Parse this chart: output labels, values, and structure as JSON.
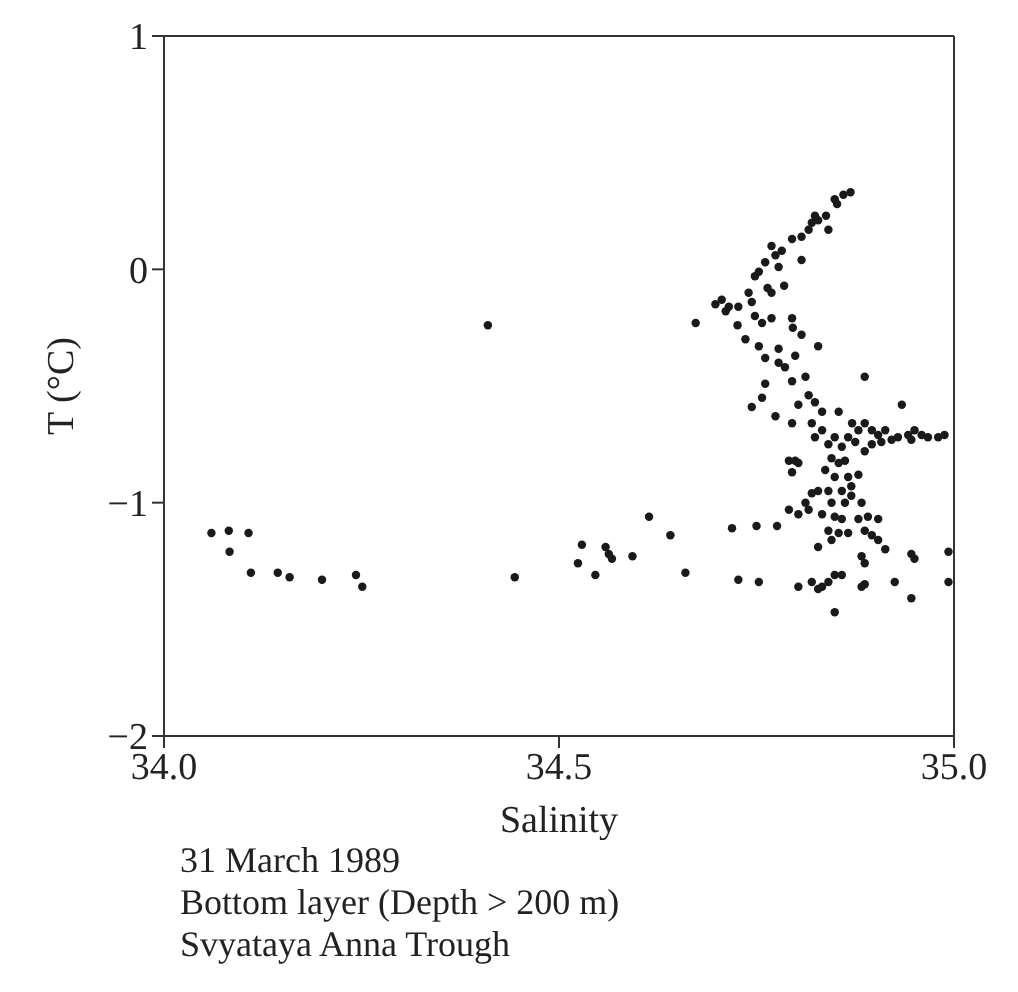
{
  "chart_data": {
    "type": "scatter",
    "xlabel": "Salinity",
    "ylabel": "T (°C)",
    "xlim": [
      34.0,
      35.0
    ],
    "xticks": [
      {
        "value": 34.0,
        "label": "34.0"
      },
      {
        "value": 34.5,
        "label": "34.5"
      },
      {
        "value": 35.0,
        "label": "35.0"
      }
    ],
    "ylim": [
      -2,
      1
    ],
    "yticks": [
      {
        "value": -2,
        "label": "−2"
      },
      {
        "value": -1,
        "label": "−1"
      },
      0,
      1
    ],
    "legend": false,
    "marker": "circle",
    "annotations": [
      "31 March 1989",
      "Bottom layer (Depth > 200 m)",
      "Svyataya Anna Trough"
    ],
    "series": [
      {
        "color": "#1a1a1a",
        "x": [
          34.869,
          34.86,
          34.849,
          34.852,
          34.838,
          34.828,
          34.824,
          34.82,
          34.816,
          34.841,
          34.807,
          34.795,
          34.782,
          34.769,
          34.774,
          34.761,
          34.753,
          34.748,
          34.778,
          34.807,
          34.769,
          34.764,
          34.785,
          34.74,
          34.744,
          34.727,
          34.715,
          34.706,
          34.711,
          34.698,
          34.673,
          34.726,
          34.748,
          34.769,
          34.757,
          34.795,
          34.796,
          34.807,
          34.828,
          34.736,
          34.753,
          34.778,
          34.761,
          34.799,
          34.778,
          34.786,
          34.761,
          34.757,
          34.744,
          34.795,
          34.812,
          34.816,
          34.824,
          34.803,
          34.774,
          34.833,
          34.795,
          34.82,
          34.887,
          34.934,
          34.854,
          34.871,
          34.879,
          34.887,
          34.896,
          34.904,
          34.913,
          34.929,
          34.942,
          34.95,
          34.959,
          34.967,
          34.98,
          34.988,
          34.946,
          34.921,
          34.908,
          34.896,
          34.887,
          34.875,
          34.866,
          34.858,
          34.849,
          34.841,
          34.833,
          34.824,
          34.791,
          34.799,
          34.803,
          34.795,
          34.845,
          34.854,
          34.862,
          34.837,
          34.849,
          34.866,
          34.879,
          34.858,
          34.841,
          34.828,
          34.82,
          34.87,
          34.812,
          34.845,
          34.862,
          34.87,
          34.883,
          34.803,
          34.791,
          34.816,
          34.849,
          34.833,
          34.858,
          34.879,
          34.891,
          34.904,
          34.841,
          34.854,
          34.866,
          34.845,
          34.828,
          34.887,
          34.896,
          34.904,
          34.913,
          34.946,
          34.95,
          34.883,
          34.887,
          34.614,
          34.641,
          34.719,
          34.75,
          34.776,
          34.529,
          34.559,
          34.563,
          34.567,
          34.593,
          34.546,
          34.66,
          34.727,
          34.753,
          34.803,
          34.82,
          34.828,
          34.841,
          34.849,
          34.858,
          34.887,
          34.883,
          34.925,
          34.946,
          34.849,
          34.993,
          34.993,
          34.833,
          34.06,
          34.082,
          34.107,
          34.083,
          34.11,
          34.144,
          34.159,
          34.2,
          34.243,
          34.251,
          34.444,
          34.524,
          34.41
        ],
        "values": [
          0.33,
          0.32,
          0.3,
          0.28,
          0.23,
          0.21,
          0.23,
          0.2,
          0.17,
          0.17,
          0.14,
          0.13,
          0.08,
          0.1,
          0.06,
          0.03,
          -0.01,
          -0.03,
          0.01,
          0.04,
          -0.1,
          -0.08,
          -0.07,
          -0.1,
          -0.14,
          -0.16,
          -0.16,
          -0.13,
          -0.18,
          -0.15,
          -0.23,
          -0.24,
          -0.2,
          -0.21,
          -0.23,
          -0.21,
          -0.25,
          -0.28,
          -0.33,
          -0.3,
          -0.33,
          -0.34,
          -0.38,
          -0.37,
          -0.4,
          -0.42,
          -0.49,
          -0.55,
          -0.59,
          -0.48,
          -0.46,
          -0.54,
          -0.57,
          -0.58,
          -0.63,
          -0.61,
          -0.66,
          -0.66,
          -0.46,
          -0.58,
          -0.61,
          -0.66,
          -0.69,
          -0.66,
          -0.69,
          -0.71,
          -0.69,
          -0.72,
          -0.71,
          -0.69,
          -0.71,
          -0.72,
          -0.72,
          -0.71,
          -0.73,
          -0.73,
          -0.74,
          -0.75,
          -0.78,
          -0.74,
          -0.72,
          -0.76,
          -0.72,
          -0.75,
          -0.69,
          -0.72,
          -0.82,
          -0.82,
          -0.83,
          -0.87,
          -0.81,
          -0.83,
          -0.82,
          -0.86,
          -0.89,
          -0.89,
          -0.88,
          -0.95,
          -0.95,
          -0.95,
          -0.96,
          -0.93,
          -1.0,
          -1.0,
          -1.0,
          -0.97,
          -1.0,
          -1.05,
          -1.03,
          -1.03,
          -1.06,
          -1.05,
          -1.07,
          -1.07,
          -1.06,
          -1.07,
          -1.12,
          -1.13,
          -1.13,
          -1.16,
          -1.19,
          -1.12,
          -1.14,
          -1.16,
          -1.2,
          -1.22,
          -1.24,
          -1.23,
          -1.26,
          -1.06,
          -1.14,
          -1.11,
          -1.1,
          -1.1,
          -1.18,
          -1.19,
          -1.22,
          -1.24,
          -1.23,
          -1.31,
          -1.3,
          -1.33,
          -1.34,
          -1.36,
          -1.34,
          -1.37,
          -1.34,
          -1.31,
          -1.31,
          -1.35,
          -1.36,
          -1.34,
          -1.41,
          -1.47,
          -1.21,
          -1.34,
          -1.36,
          -1.13,
          -1.12,
          -1.13,
          -1.21,
          -1.3,
          -1.3,
          -1.32,
          -1.33,
          -1.31,
          -1.36,
          -1.32,
          -1.26,
          -0.24
        ]
      }
    ]
  }
}
